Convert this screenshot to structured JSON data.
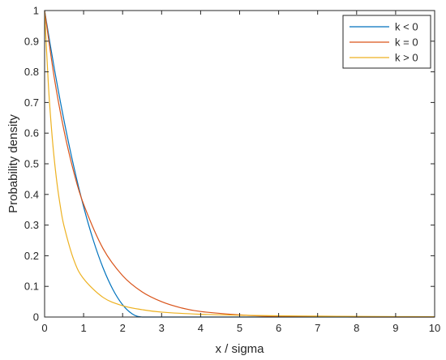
{
  "chart_data": {
    "type": "line",
    "xlabel": "x / sigma",
    "ylabel": "Probability density",
    "xlim": [
      0,
      10
    ],
    "ylim": [
      0,
      1
    ],
    "xticks": [
      "0",
      "1",
      "2",
      "3",
      "4",
      "5",
      "6",
      "7",
      "8",
      "9",
      "10"
    ],
    "yticks": [
      "0",
      "0.1",
      "0.2",
      "0.3",
      "0.4",
      "0.5",
      "0.6",
      "0.7",
      "0.8",
      "0.9",
      "1"
    ],
    "grid": false,
    "legend_position": "top-right",
    "series": [
      {
        "name": "k < 0",
        "color": "#0072bd",
        "x": [
          0,
          0.25,
          0.5,
          0.75,
          1.0,
          1.25,
          1.5,
          1.75,
          2.0,
          2.25,
          2.5,
          3,
          4,
          5,
          6,
          7,
          8,
          9,
          10
        ],
        "y": [
          1.0,
          0.81,
          0.64,
          0.49,
          0.36,
          0.25,
          0.16,
          0.09,
          0.04,
          0.01,
          0.0,
          0.0,
          0.0,
          0.0,
          0.0,
          0.0,
          0.0,
          0.0,
          0.0
        ]
      },
      {
        "name": "k = 0",
        "color": "#d95319",
        "x": [
          0,
          0.25,
          0.5,
          0.75,
          1.0,
          1.5,
          2.0,
          2.5,
          3.0,
          3.5,
          4.0,
          5.0,
          6.0,
          7.0,
          8.0,
          9.0,
          10.0
        ],
        "y": [
          1.0,
          0.779,
          0.607,
          0.472,
          0.368,
          0.223,
          0.135,
          0.082,
          0.05,
          0.03,
          0.018,
          0.007,
          0.002,
          0.001,
          0.0,
          0.0,
          0.0
        ]
      },
      {
        "name": "k > 0",
        "color": "#edb120",
        "x": [
          0,
          0.1,
          0.2,
          0.3,
          0.4,
          0.5,
          0.75,
          1.0,
          1.5,
          2.0,
          2.5,
          3.0,
          4.0,
          5.0,
          6.0,
          7.0,
          8.0,
          9.0,
          10.0
        ],
        "y": [
          1.0,
          0.751,
          0.579,
          0.455,
          0.364,
          0.296,
          0.186,
          0.125,
          0.064,
          0.037,
          0.024,
          0.016,
          0.009,
          0.006,
          0.004,
          0.003,
          0.002,
          0.0015,
          0.001
        ]
      }
    ]
  }
}
